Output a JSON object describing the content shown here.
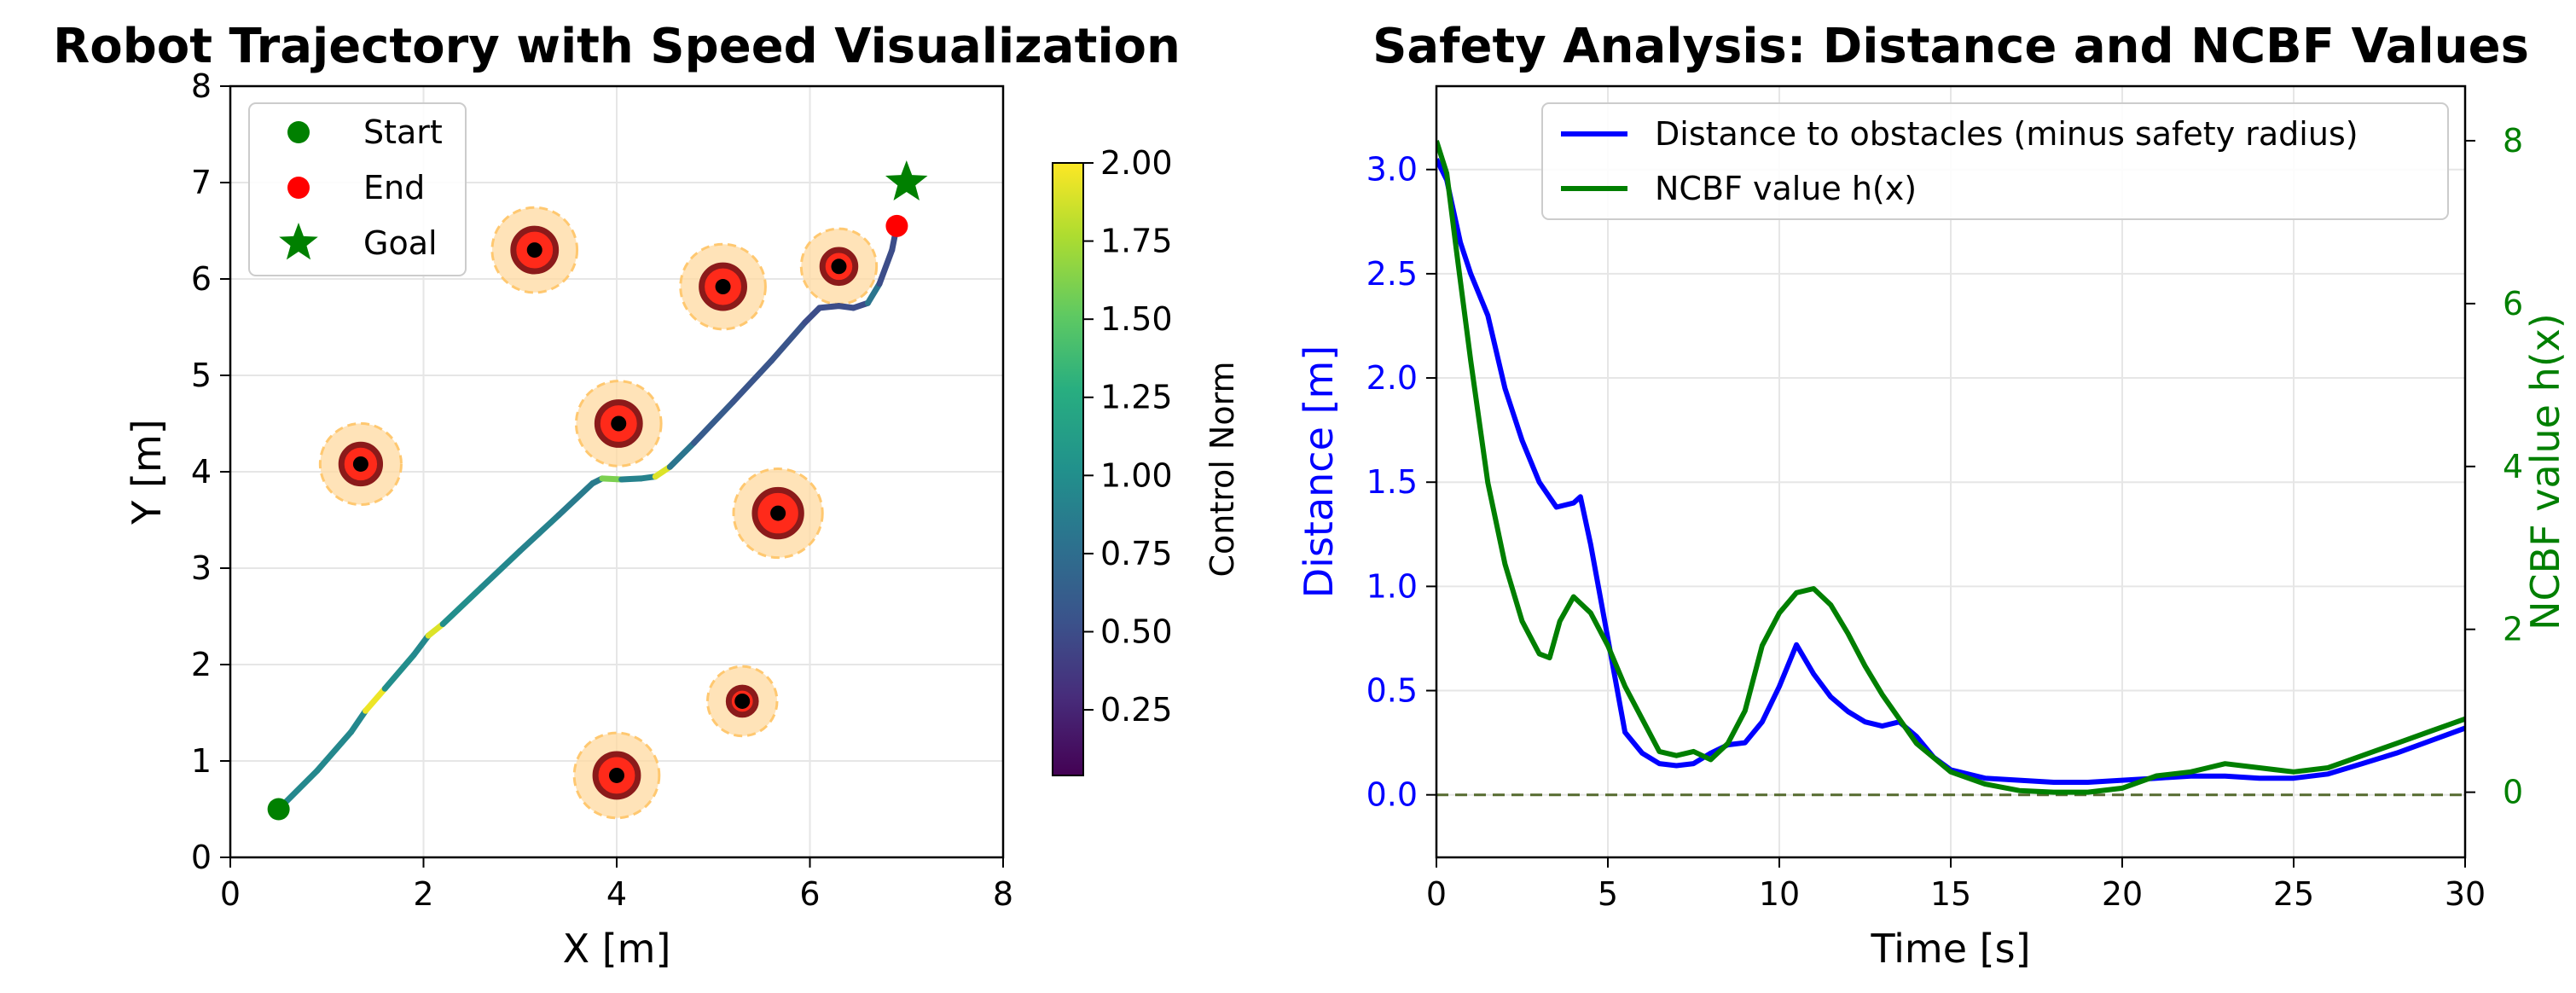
{
  "chart_data": [
    {
      "type": "scatter",
      "title": "Robot Trajectory with Speed Visualization",
      "xlabel": "X [m]",
      "ylabel": "Y [m]",
      "xlim": [
        0,
        8
      ],
      "ylim": [
        0,
        8
      ],
      "xticks": [
        "0",
        "2",
        "4",
        "6",
        "8"
      ],
      "yticks": [
        "0",
        "1",
        "2",
        "3",
        "4",
        "5",
        "6",
        "7",
        "8"
      ],
      "grid": true,
      "legend_placement": "top-left",
      "legend": [
        {
          "label": "Start",
          "marker": "circle",
          "color": "#008000"
        },
        {
          "label": "End",
          "marker": "circle",
          "color": "#ff0000"
        },
        {
          "label": "Goal",
          "marker": "star",
          "color": "#008000"
        }
      ],
      "start": [
        0.5,
        0.5
      ],
      "end": [
        6.9,
        6.55
      ],
      "goal": [
        7.0,
        7.0
      ],
      "obstacles": [
        {
          "x": 3.15,
          "y": 6.3,
          "r": 0.22
        },
        {
          "x": 5.1,
          "y": 5.92,
          "r": 0.22
        },
        {
          "x": 6.3,
          "y": 6.13,
          "r": 0.17
        },
        {
          "x": 4.02,
          "y": 4.5,
          "r": 0.22
        },
        {
          "x": 1.35,
          "y": 4.08,
          "r": 0.2
        },
        {
          "x": 5.67,
          "y": 3.57,
          "r": 0.24
        },
        {
          "x": 5.3,
          "y": 1.62,
          "r": 0.14
        },
        {
          "x": 4.0,
          "y": 0.85,
          "r": 0.22
        }
      ],
      "obstacle_safety_margin": 0.22,
      "trajectory": [
        [
          0.5,
          0.5,
          0.95
        ],
        [
          0.9,
          0.9,
          0.95
        ],
        [
          1.25,
          1.3,
          0.95
        ],
        [
          1.4,
          1.52,
          1.95
        ],
        [
          1.6,
          1.75,
          1.0
        ],
        [
          1.9,
          2.1,
          0.95
        ],
        [
          2.05,
          2.3,
          1.9
        ],
        [
          2.2,
          2.42,
          1.0
        ],
        [
          2.6,
          2.8,
          0.95
        ],
        [
          3.0,
          3.18,
          0.9
        ],
        [
          3.4,
          3.55,
          0.85
        ],
        [
          3.75,
          3.88,
          0.85
        ],
        [
          3.85,
          3.93,
          1.6
        ],
        [
          4.05,
          3.92,
          0.9
        ],
        [
          4.25,
          3.93,
          0.9
        ],
        [
          4.4,
          3.95,
          1.9
        ],
        [
          4.55,
          4.05,
          0.8
        ],
        [
          4.8,
          4.3,
          0.6
        ],
        [
          5.2,
          4.72,
          0.55
        ],
        [
          5.6,
          5.15,
          0.55
        ],
        [
          5.95,
          5.55,
          0.5
        ],
        [
          6.1,
          5.7,
          0.5
        ],
        [
          6.3,
          5.72,
          0.5
        ],
        [
          6.45,
          5.7,
          0.5
        ],
        [
          6.6,
          5.75,
          0.8
        ],
        [
          6.72,
          5.95,
          0.5
        ],
        [
          6.85,
          6.3,
          0.5
        ],
        [
          6.9,
          6.55,
          0.5
        ]
      ],
      "colorbar": {
        "label": "Control Norm",
        "colormap": "viridis",
        "range": [
          0.04,
          2.0
        ],
        "ticks": [
          "0.25",
          "0.50",
          "0.75",
          "1.00",
          "1.25",
          "1.50",
          "1.75",
          "2.00"
        ]
      }
    },
    {
      "type": "line",
      "title": "Safety Analysis: Distance and NCBF Values",
      "xlabel": "Time [s]",
      "ylabel": "Distance [m]",
      "ylabel_right": "NCBF value h(x)",
      "xlim": [
        0,
        30
      ],
      "ylim": [
        -0.3,
        3.4
      ],
      "ylim_right": [
        -0.8,
        8.67
      ],
      "xticks": [
        "0",
        "5",
        "10",
        "15",
        "20",
        "25",
        "30"
      ],
      "yticks": [
        "0.0",
        "0.5",
        "1.0",
        "1.5",
        "2.0",
        "2.5",
        "3.0"
      ],
      "yticks_right": [
        "0",
        "2",
        "4",
        "6",
        "8"
      ],
      "grid": true,
      "legend_placement": "top-right",
      "reference_line": {
        "y": 0,
        "style": "dashed",
        "color": "#556b2f"
      },
      "series": [
        {
          "name": "Distance to obstacles (minus safety radius)",
          "axis": "left",
          "color": "#0000ff",
          "x": [
            0,
            0.3,
            0.7,
            1.0,
            1.5,
            2.0,
            2.5,
            3.0,
            3.5,
            4.0,
            4.2,
            4.5,
            5.0,
            5.5,
            6.0,
            6.5,
            7.0,
            7.5,
            8.0,
            8.5,
            9.0,
            9.5,
            10.0,
            10.5,
            11.0,
            11.5,
            12.0,
            12.5,
            13.0,
            13.5,
            14.0,
            14.5,
            15.0,
            16.0,
            17.0,
            18.0,
            19.0,
            20.0,
            21.0,
            22.0,
            23.0,
            24.0,
            25.0,
            26.0,
            27.0,
            28.0,
            29.0,
            30.0
          ],
          "values": [
            3.05,
            2.95,
            2.65,
            2.5,
            2.3,
            1.95,
            1.7,
            1.5,
            1.38,
            1.4,
            1.43,
            1.2,
            0.75,
            0.3,
            0.2,
            0.15,
            0.14,
            0.15,
            0.2,
            0.24,
            0.25,
            0.35,
            0.52,
            0.72,
            0.58,
            0.47,
            0.4,
            0.35,
            0.33,
            0.35,
            0.28,
            0.18,
            0.12,
            0.08,
            0.07,
            0.06,
            0.06,
            0.07,
            0.08,
            0.09,
            0.09,
            0.08,
            0.08,
            0.1,
            0.15,
            0.2,
            0.26,
            0.32
          ]
        },
        {
          "name": "NCBF value h(x)",
          "axis": "right",
          "color": "#007f00",
          "x": [
            0,
            0.3,
            0.6,
            1.0,
            1.5,
            2.0,
            2.5,
            3.0,
            3.3,
            3.6,
            4.0,
            4.5,
            5.0,
            5.5,
            6.0,
            6.5,
            7.0,
            7.5,
            8.0,
            8.5,
            9.0,
            9.5,
            10.0,
            10.5,
            11.0,
            11.5,
            12.0,
            12.5,
            13.0,
            14.0,
            15.0,
            16.0,
            17.0,
            18.0,
            19.0,
            20.0,
            21.0,
            22.0,
            22.5,
            23.0,
            24.0,
            25.0,
            26.0,
            27.0,
            28.0,
            29.0,
            30.0
          ],
          "values": [
            8.0,
            7.6,
            6.6,
            5.3,
            3.8,
            2.8,
            2.1,
            1.7,
            1.65,
            2.1,
            2.4,
            2.2,
            1.8,
            1.3,
            0.9,
            0.5,
            0.45,
            0.5,
            0.4,
            0.6,
            1.0,
            1.8,
            2.2,
            2.45,
            2.5,
            2.3,
            1.95,
            1.55,
            1.2,
            0.6,
            0.25,
            0.1,
            0.02,
            0.0,
            0.0,
            0.05,
            0.2,
            0.25,
            0.3,
            0.35,
            0.3,
            0.25,
            0.3,
            0.45,
            0.6,
            0.75,
            0.9
          ]
        }
      ]
    }
  ]
}
